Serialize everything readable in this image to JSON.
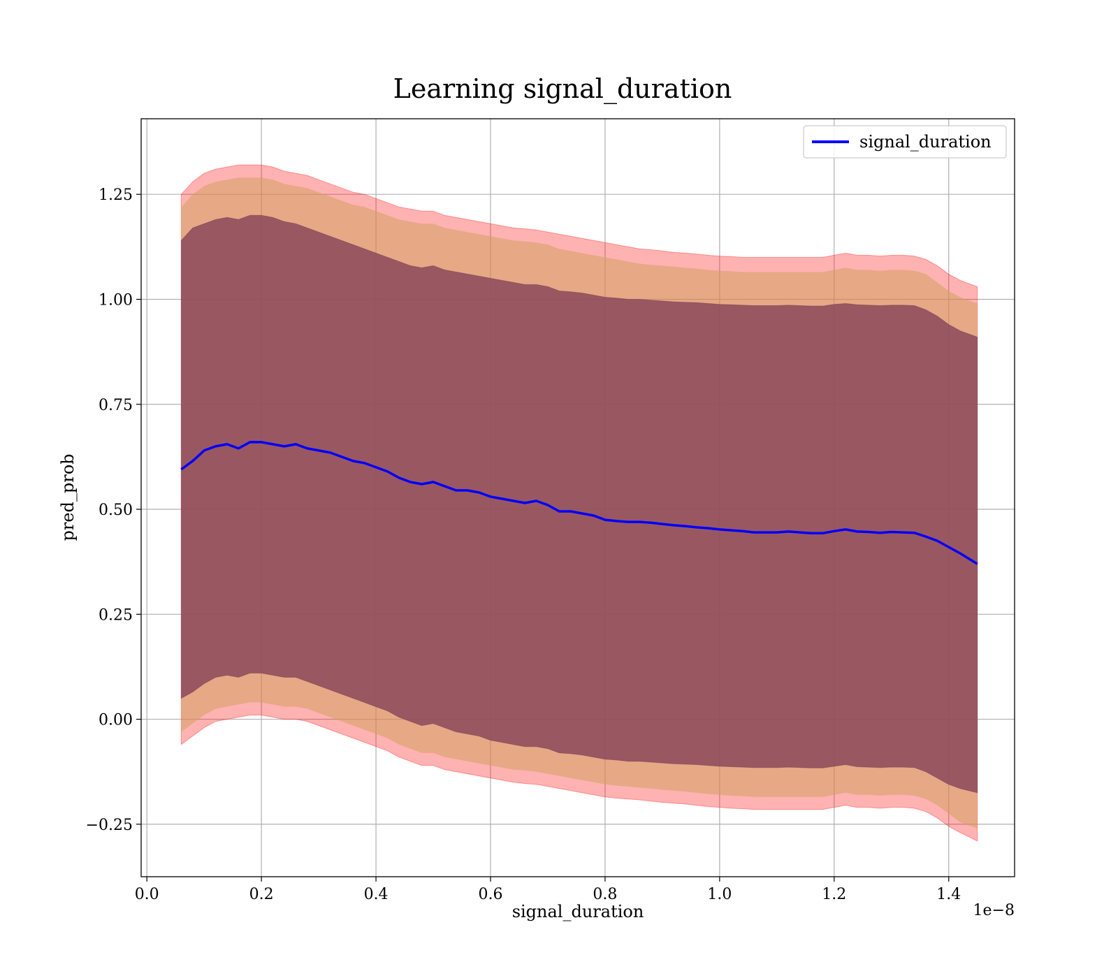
{
  "chart_data": {
    "type": "line",
    "title": "Learning signal_duration",
    "xlabel": "signal_duration",
    "ylabel": "pred_prob",
    "x_offset_label": "1e−8",
    "xlim": [
      -0.01,
      1.515
    ],
    "ylim": [
      -0.375,
      1.43
    ],
    "x_ticks": [
      0.0,
      0.2,
      0.4,
      0.6,
      0.8,
      1.0,
      1.2,
      1.4
    ],
    "x_tick_labels": [
      "0.0",
      "0.2",
      "0.4",
      "0.6",
      "0.8",
      "1.0",
      "1.2",
      "1.4"
    ],
    "y_ticks": [
      -0.25,
      0.0,
      0.25,
      0.5,
      0.75,
      1.0,
      1.25
    ],
    "y_tick_labels": [
      "−0.25",
      "0.00",
      "0.25",
      "0.50",
      "0.75",
      "1.00",
      "1.25"
    ],
    "grid": true,
    "legend": {
      "position": "top-right",
      "entries": [
        "signal_duration"
      ]
    },
    "colors": {
      "line": "#0000ff",
      "outer_band": "#ff0000",
      "inner_band": "#8b4a5a",
      "middle_band": "#d4a060"
    },
    "series": [
      {
        "name": "signal_duration",
        "x": [
          0.06,
          0.08,
          0.1,
          0.12,
          0.14,
          0.16,
          0.18,
          0.2,
          0.22,
          0.24,
          0.26,
          0.28,
          0.3,
          0.32,
          0.34,
          0.36,
          0.38,
          0.4,
          0.42,
          0.44,
          0.46,
          0.48,
          0.5,
          0.52,
          0.54,
          0.56,
          0.58,
          0.6,
          0.62,
          0.64,
          0.66,
          0.68,
          0.7,
          0.72,
          0.74,
          0.76,
          0.78,
          0.8,
          0.82,
          0.84,
          0.86,
          0.88,
          0.9,
          0.92,
          0.94,
          0.96,
          0.98,
          1.0,
          1.02,
          1.04,
          1.06,
          1.08,
          1.1,
          1.12,
          1.14,
          1.16,
          1.18,
          1.2,
          1.22,
          1.24,
          1.26,
          1.28,
          1.3,
          1.32,
          1.34,
          1.36,
          1.38,
          1.4,
          1.42,
          1.45
        ],
        "y": [
          0.595,
          0.615,
          0.64,
          0.65,
          0.655,
          0.645,
          0.66,
          0.66,
          0.655,
          0.65,
          0.655,
          0.645,
          0.64,
          0.635,
          0.625,
          0.615,
          0.61,
          0.6,
          0.59,
          0.575,
          0.565,
          0.56,
          0.565,
          0.555,
          0.545,
          0.545,
          0.54,
          0.53,
          0.525,
          0.52,
          0.515,
          0.52,
          0.51,
          0.495,
          0.495,
          0.49,
          0.485,
          0.475,
          0.472,
          0.47,
          0.47,
          0.468,
          0.465,
          0.462,
          0.46,
          0.457,
          0.455,
          0.452,
          0.45,
          0.448,
          0.445,
          0.445,
          0.445,
          0.447,
          0.445,
          0.443,
          0.443,
          0.448,
          0.452,
          0.447,
          0.446,
          0.444,
          0.446,
          0.445,
          0.444,
          0.435,
          0.425,
          0.41,
          0.395,
          0.37
        ],
        "outer_upper": [
          1.25,
          1.28,
          1.3,
          1.31,
          1.315,
          1.32,
          1.32,
          1.32,
          1.315,
          1.305,
          1.3,
          1.295,
          1.285,
          1.275,
          1.265,
          1.255,
          1.25,
          1.24,
          1.23,
          1.22,
          1.215,
          1.21,
          1.21,
          1.2,
          1.195,
          1.19,
          1.185,
          1.18,
          1.175,
          1.17,
          1.168,
          1.165,
          1.16,
          1.155,
          1.15,
          1.145,
          1.14,
          1.135,
          1.13,
          1.125,
          1.12,
          1.118,
          1.115,
          1.112,
          1.11,
          1.108,
          1.105,
          1.103,
          1.102,
          1.1,
          1.1,
          1.1,
          1.1,
          1.1,
          1.1,
          1.1,
          1.1,
          1.105,
          1.11,
          1.105,
          1.105,
          1.103,
          1.105,
          1.105,
          1.103,
          1.095,
          1.08,
          1.06,
          1.045,
          1.03
        ],
        "outer_lower": [
          -0.06,
          -0.04,
          -0.02,
          -0.005,
          0.0,
          0.005,
          0.01,
          0.01,
          0.005,
          0.0,
          0.0,
          -0.005,
          -0.015,
          -0.025,
          -0.035,
          -0.045,
          -0.055,
          -0.065,
          -0.075,
          -0.09,
          -0.1,
          -0.11,
          -0.11,
          -0.12,
          -0.125,
          -0.13,
          -0.135,
          -0.14,
          -0.145,
          -0.15,
          -0.153,
          -0.155,
          -0.16,
          -0.165,
          -0.17,
          -0.175,
          -0.18,
          -0.185,
          -0.188,
          -0.19,
          -0.192,
          -0.195,
          -0.198,
          -0.2,
          -0.202,
          -0.205,
          -0.208,
          -0.21,
          -0.212,
          -0.213,
          -0.215,
          -0.215,
          -0.215,
          -0.215,
          -0.215,
          -0.215,
          -0.215,
          -0.21,
          -0.205,
          -0.21,
          -0.21,
          -0.212,
          -0.21,
          -0.21,
          -0.212,
          -0.22,
          -0.235,
          -0.255,
          -0.27,
          -0.29
        ],
        "middle_upper": [
          1.22,
          1.25,
          1.27,
          1.28,
          1.285,
          1.29,
          1.29,
          1.29,
          1.285,
          1.275,
          1.27,
          1.265,
          1.255,
          1.245,
          1.235,
          1.225,
          1.22,
          1.21,
          1.2,
          1.19,
          1.185,
          1.18,
          1.18,
          1.17,
          1.165,
          1.16,
          1.155,
          1.15,
          1.145,
          1.14,
          1.138,
          1.135,
          1.13,
          1.12,
          1.115,
          1.11,
          1.105,
          1.1,
          1.095,
          1.09,
          1.085,
          1.082,
          1.08,
          1.078,
          1.075,
          1.073,
          1.07,
          1.068,
          1.067,
          1.065,
          1.065,
          1.065,
          1.065,
          1.065,
          1.065,
          1.065,
          1.065,
          1.07,
          1.075,
          1.07,
          1.07,
          1.068,
          1.07,
          1.07,
          1.068,
          1.06,
          1.04,
          1.02,
          1.005,
          0.99
        ],
        "middle_lower": [
          -0.03,
          -0.01,
          0.01,
          0.025,
          0.03,
          0.035,
          0.04,
          0.04,
          0.035,
          0.03,
          0.03,
          0.025,
          0.015,
          0.005,
          -0.005,
          -0.015,
          -0.025,
          -0.035,
          -0.045,
          -0.06,
          -0.07,
          -0.08,
          -0.08,
          -0.09,
          -0.095,
          -0.1,
          -0.105,
          -0.11,
          -0.115,
          -0.12,
          -0.122,
          -0.125,
          -0.13,
          -0.135,
          -0.14,
          -0.145,
          -0.15,
          -0.155,
          -0.158,
          -0.16,
          -0.163,
          -0.165,
          -0.168,
          -0.17,
          -0.172,
          -0.175,
          -0.178,
          -0.18,
          -0.182,
          -0.183,
          -0.185,
          -0.185,
          -0.185,
          -0.185,
          -0.185,
          -0.185,
          -0.185,
          -0.18,
          -0.175,
          -0.18,
          -0.18,
          -0.182,
          -0.18,
          -0.18,
          -0.182,
          -0.19,
          -0.205,
          -0.225,
          -0.245,
          -0.26
        ],
        "inner_upper": [
          1.14,
          1.17,
          1.18,
          1.19,
          1.195,
          1.19,
          1.2,
          1.2,
          1.195,
          1.185,
          1.18,
          1.17,
          1.16,
          1.15,
          1.14,
          1.13,
          1.12,
          1.11,
          1.1,
          1.09,
          1.08,
          1.075,
          1.08,
          1.07,
          1.065,
          1.06,
          1.055,
          1.05,
          1.045,
          1.04,
          1.035,
          1.035,
          1.03,
          1.02,
          1.018,
          1.015,
          1.01,
          1.005,
          1.003,
          1.0,
          1.0,
          0.998,
          0.996,
          0.994,
          0.993,
          0.992,
          0.99,
          0.988,
          0.987,
          0.986,
          0.985,
          0.985,
          0.985,
          0.986,
          0.985,
          0.984,
          0.984,
          0.988,
          0.99,
          0.987,
          0.986,
          0.985,
          0.986,
          0.986,
          0.985,
          0.975,
          0.96,
          0.94,
          0.925,
          0.91
        ],
        "inner_lower": [
          0.05,
          0.065,
          0.085,
          0.1,
          0.105,
          0.1,
          0.11,
          0.11,
          0.105,
          0.1,
          0.1,
          0.09,
          0.08,
          0.07,
          0.06,
          0.05,
          0.04,
          0.03,
          0.02,
          0.005,
          -0.005,
          -0.015,
          -0.01,
          -0.02,
          -0.03,
          -0.035,
          -0.04,
          -0.05,
          -0.055,
          -0.06,
          -0.065,
          -0.065,
          -0.07,
          -0.08,
          -0.082,
          -0.085,
          -0.09,
          -0.095,
          -0.097,
          -0.1,
          -0.1,
          -0.102,
          -0.104,
          -0.106,
          -0.107,
          -0.108,
          -0.11,
          -0.112,
          -0.113,
          -0.114,
          -0.115,
          -0.115,
          -0.115,
          -0.114,
          -0.115,
          -0.116,
          -0.116,
          -0.112,
          -0.108,
          -0.113,
          -0.114,
          -0.115,
          -0.114,
          -0.114,
          -0.115,
          -0.125,
          -0.14,
          -0.155,
          -0.165,
          -0.175
        ]
      }
    ]
  }
}
